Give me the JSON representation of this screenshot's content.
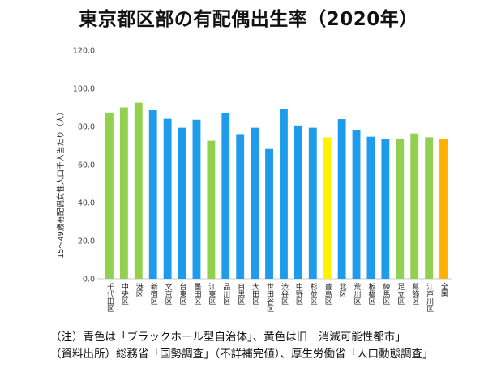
{
  "chart_data": {
    "type": "bar",
    "title": "東京都区部の有配偶出生率（2020年）",
    "ylabel": "15～49歳有配偶女性人口千人当たり（人）",
    "xlabel": "",
    "ylim": [
      0,
      120
    ],
    "yticks": [
      "0.0",
      "20.0",
      "40.0",
      "60.0",
      "80.0",
      "100.0",
      "120.0"
    ],
    "grid": false,
    "categories": [
      "千代田区",
      "中央区",
      "港区",
      "新宿区",
      "文京区",
      "台東区",
      "墨田区",
      "江東区",
      "品川区",
      "目黒区",
      "大田区",
      "世田谷区",
      "渋谷区",
      "中野区",
      "杉並区",
      "豊島区",
      "北区",
      "荒川区",
      "板橋区",
      "練馬区",
      "足立区",
      "葛飾区",
      "江戸川区",
      "全国"
    ],
    "values": [
      87.3,
      90.0,
      92.5,
      88.5,
      84.0,
      79.3,
      83.5,
      72.5,
      87.0,
      76.0,
      79.3,
      68.2,
      89.2,
      80.5,
      79.3,
      74.3,
      83.8,
      78.0,
      74.6,
      73.3,
      73.5,
      76.3,
      74.3,
      73.5
    ],
    "colors": [
      "#92D050",
      "#92D050",
      "#92D050",
      "#1E9BEB",
      "#1E9BEB",
      "#1E9BEB",
      "#1E9BEB",
      "#92D050",
      "#1E9BEB",
      "#1E9BEB",
      "#1E9BEB",
      "#1E9BEB",
      "#1E9BEB",
      "#1E9BEB",
      "#1E9BEB",
      "#FFF200",
      "#1E9BEB",
      "#1E9BEB",
      "#1E9BEB",
      "#1E9BEB",
      "#92D050",
      "#92D050",
      "#92D050",
      "#FFB000"
    ]
  },
  "notes": {
    "line1": "（注）青色は「ブラックホール型自治体」、黄色は旧「消滅可能性都市」",
    "line2": "（資料出所）総務省「国勢調査」（不詳補完値）、厚生労働省「人口動態調査」"
  }
}
